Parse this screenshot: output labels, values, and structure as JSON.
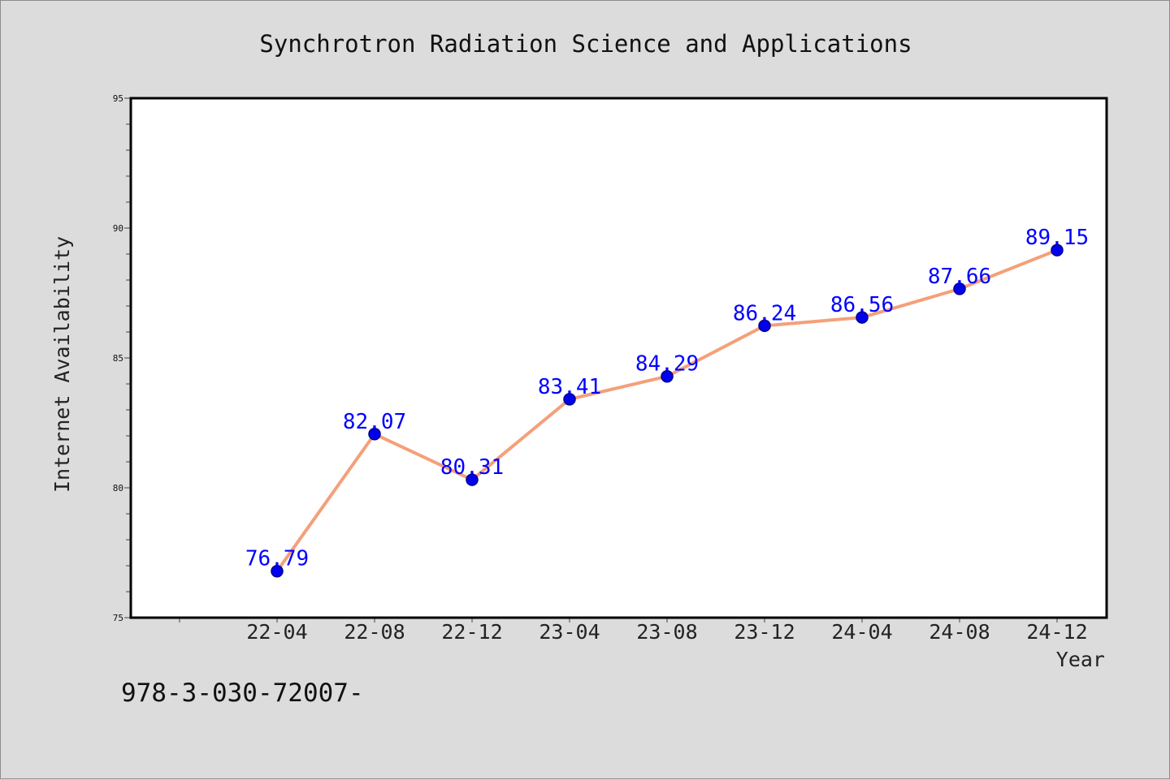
{
  "chart_data": {
    "type": "line",
    "title": "Synchrotron Radiation Science and Applications",
    "xlabel": "Year",
    "ylabel": "Internet Availability",
    "categories": [
      "22-04",
      "22-08",
      "22-12",
      "23-04",
      "23-08",
      "23-12",
      "24-04",
      "24-08",
      "24-12"
    ],
    "series": [
      {
        "values": [
          76.79,
          82.07,
          80.31,
          83.41,
          84.29,
          86.24,
          86.56,
          87.66,
          89.15
        ]
      }
    ],
    "data_labels": [
      "76.79",
      "82.07",
      "80.31",
      "83.41",
      "84.29",
      "86.24",
      "86.56",
      "87.66",
      "89.15"
    ],
    "ylim": [
      75,
      95
    ],
    "yticks": [
      75,
      80,
      85,
      90,
      95
    ],
    "grid": false,
    "legend": "none",
    "colors": {
      "line": "#f4a07a",
      "marker": "#0000ee",
      "marker_edge": "#00008b",
      "label": "#0000ff",
      "background": "#dcdcdc",
      "plot_area": "#ffffff"
    }
  },
  "footer_text": "978-3-030-72007-"
}
